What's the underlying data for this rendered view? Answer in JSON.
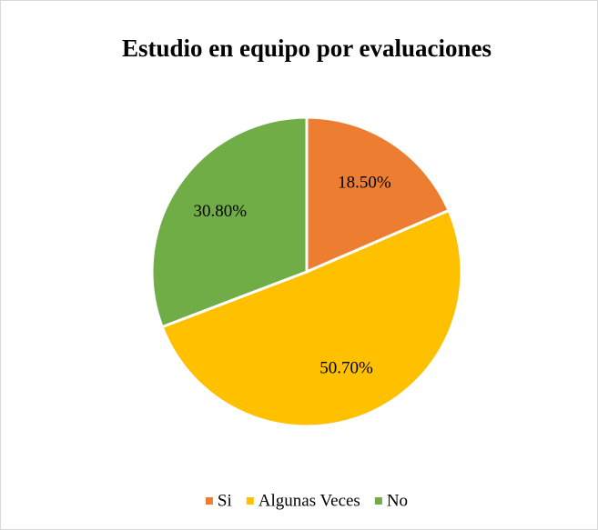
{
  "chart_data": {
    "type": "pie",
    "title": "Estudio en equipo por evaluaciones",
    "categories": [
      "Si",
      "Algunas Veces",
      "No"
    ],
    "values": [
      18.5,
      50.7,
      30.8
    ],
    "value_labels": [
      "18.50%",
      "50.70%",
      "30.80%"
    ],
    "colors": [
      "#ed7d31",
      "#ffc000",
      "#70ad47"
    ],
    "legend": "bottom"
  }
}
